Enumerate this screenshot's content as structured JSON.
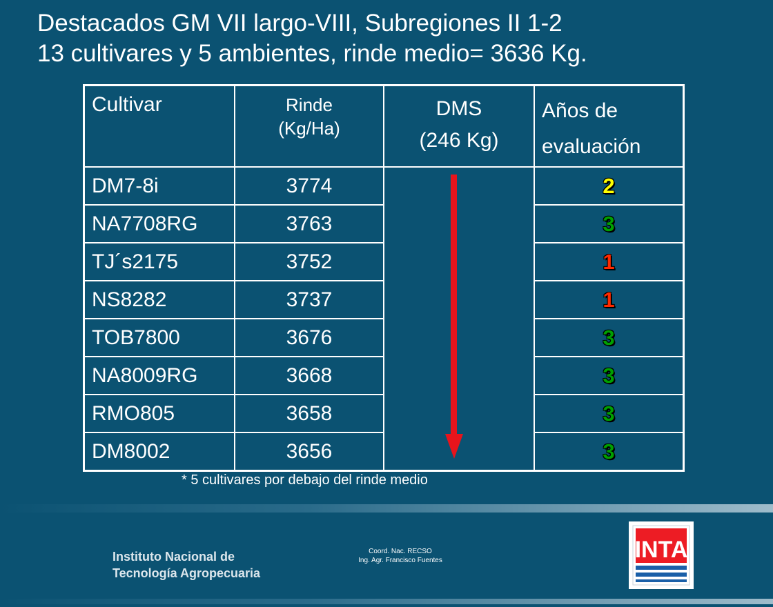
{
  "title": {
    "line1": "Destacados GM VII largo-VIII, Subregiones II 1-2",
    "line2": "13 cultivares y 5 ambientes, rinde medio= 3636 Kg."
  },
  "table": {
    "headers": {
      "cultivar": "Cultivar",
      "rinde_line1": "Rinde",
      "rinde_line2": "(Kg/Ha)",
      "dms_line1": "DMS",
      "dms_line2": "(246 Kg)",
      "anos_line1": "Años de",
      "anos_line2": "evaluación"
    },
    "rows": [
      {
        "cultivar": "DM7-8i",
        "rinde": "3774",
        "anos": "2",
        "anos_color": "#ffff00"
      },
      {
        "cultivar": "NA7708RG",
        "rinde": "3763",
        "anos": "3",
        "anos_color": "#00a000"
      },
      {
        "cultivar": "TJ´s2175",
        "rinde": "3752",
        "anos": "1",
        "anos_color": "#ff2a00"
      },
      {
        "cultivar": "NS8282",
        "rinde": "3737",
        "anos": "1",
        "anos_color": "#ff2a00"
      },
      {
        "cultivar": "TOB7800",
        "rinde": "3676",
        "anos": "3",
        "anos_color": "#00a000"
      },
      {
        "cultivar": "NA8009RG",
        "rinde": "3668",
        "anos": "3",
        "anos_color": "#00a000"
      },
      {
        "cultivar": "RMO805",
        "rinde": "3658",
        "anos": "3",
        "anos_color": "#00a000"
      },
      {
        "cultivar": "DM8002",
        "rinde": "3656",
        "anos": "3",
        "anos_color": "#00a000"
      }
    ]
  },
  "footnote": "* 5 cultivares por debajo del rinde medio",
  "footer": {
    "institute_line1": "Instituto Nacional de",
    "institute_line2": "Tecnología Agropecuaria",
    "coord_line1": "Coord. Nac. RECSO",
    "coord_line2": "Ing. Agr. Francisco Fuentes",
    "logo_text": "INTA"
  },
  "colors": {
    "background": "#0b5272",
    "arrow": "#e8141c",
    "logo_blue": "#1a5fa8"
  }
}
